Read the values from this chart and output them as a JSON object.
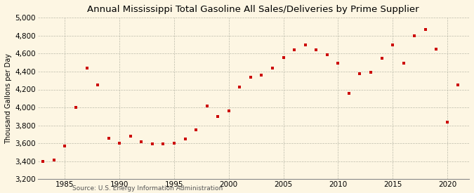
{
  "title": "Annual Mississippi Total Gasoline All Sales/Deliveries by Prime Supplier",
  "ylabel": "Thousand Gallons per Day",
  "source": "Source: U.S. Energy Information Administration",
  "background_color": "#fdf6e3",
  "marker_color": "#cc0000",
  "years": [
    1983,
    1984,
    1985,
    1986,
    1987,
    1988,
    1989,
    1990,
    1991,
    1992,
    1993,
    1994,
    1995,
    1996,
    1997,
    1998,
    1999,
    2000,
    2001,
    2002,
    2003,
    2004,
    2005,
    2006,
    2007,
    2008,
    2009,
    2010,
    2011,
    2012,
    2013,
    2014,
    2015,
    2016,
    2017,
    2018,
    2019,
    2020,
    2021
  ],
  "values": [
    3400,
    3410,
    3570,
    4000,
    4440,
    4250,
    3660,
    3600,
    3680,
    3620,
    3590,
    3590,
    3600,
    3650,
    3750,
    4020,
    3900,
    3960,
    4230,
    4340,
    4360,
    4440,
    4560,
    4640,
    4700,
    4640,
    4590,
    4490,
    4160,
    4380,
    4390,
    4550,
    4700,
    4490,
    4800,
    4870,
    4650,
    3840,
    4250
  ],
  "ylim": [
    3200,
    5000
  ],
  "yticks": [
    3200,
    3400,
    3600,
    3800,
    4000,
    4200,
    4400,
    4600,
    4800,
    5000
  ],
  "xlim": [
    1982.5,
    2022
  ],
  "xticks": [
    1985,
    1990,
    1995,
    2000,
    2005,
    2010,
    2015,
    2020
  ]
}
